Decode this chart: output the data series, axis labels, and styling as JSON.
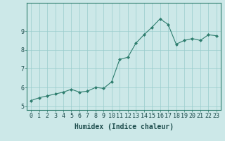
{
  "x": [
    0,
    1,
    2,
    3,
    4,
    5,
    6,
    7,
    8,
    9,
    10,
    11,
    12,
    13,
    14,
    15,
    16,
    17,
    18,
    19,
    20,
    21,
    22,
    23
  ],
  "y": [
    5.3,
    5.45,
    5.55,
    5.65,
    5.75,
    5.9,
    5.75,
    5.8,
    6.0,
    5.95,
    6.3,
    7.5,
    7.6,
    8.35,
    8.8,
    9.2,
    9.65,
    9.35,
    8.3,
    8.5,
    8.6,
    8.5,
    8.8,
    8.75
  ],
  "line_color": "#2e7d6e",
  "marker": "D",
  "marker_size": 2.0,
  "background_color": "#cce8e8",
  "grid_color": "#99cccc",
  "xlabel": "Humidex (Indice chaleur)",
  "xlabel_fontsize": 7,
  "tick_fontsize": 6,
  "xlim": [
    -0.5,
    23.5
  ],
  "ylim": [
    4.8,
    10.5
  ],
  "yticks": [
    5,
    6,
    7,
    8,
    9
  ],
  "xticks": [
    0,
    1,
    2,
    3,
    4,
    5,
    6,
    7,
    8,
    9,
    10,
    11,
    12,
    13,
    14,
    15,
    16,
    17,
    18,
    19,
    20,
    21,
    22,
    23
  ],
  "spine_color": "#2e7d6e",
  "title": ""
}
